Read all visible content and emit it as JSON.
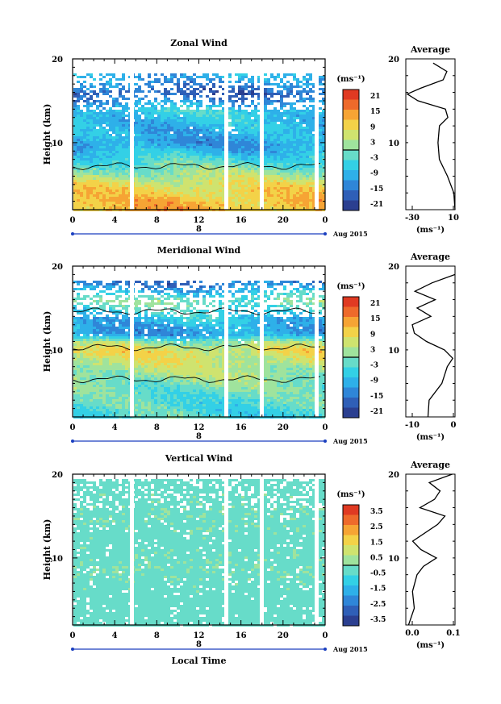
{
  "colors": {
    "colorbar": [
      "#2b3f90",
      "#2f5fb7",
      "#2f86d8",
      "#2eb0e9",
      "#33d0e6",
      "#67dcc9",
      "#9fe39d",
      "#cfe36f",
      "#f3d248",
      "#f6a434",
      "#ee6a2b",
      "#e03a22"
    ],
    "contour": "#000000",
    "gap": "#ffffff"
  },
  "x_axis": {
    "ticks": [
      "0",
      "4",
      "8",
      "12",
      "16",
      "20",
      "0"
    ],
    "date_label": "8",
    "month_label": "Aug 2015",
    "title": "Local Time"
  },
  "panels": [
    {
      "id": "zonal",
      "title": "Zonal Wind",
      "ylabel": "Height (km)",
      "yticks": [
        "20",
        "10"
      ],
      "unit": "(ms⁻¹)",
      "colorbar_ticks": [
        "21",
        "15",
        "9",
        "3",
        "-3",
        "-9",
        "-15",
        "-21"
      ],
      "avg_title": "Average",
      "avg_xticks": [
        "-30",
        "10"
      ],
      "avg_unit": "(ms⁻¹)",
      "avg_yticks": [
        "20",
        "10"
      ]
    },
    {
      "id": "meridional",
      "title": "Meridional Wind",
      "ylabel": "Height (km)",
      "yticks": [
        "20",
        "10"
      ],
      "unit": "(ms⁻¹)",
      "colorbar_ticks": [
        "21",
        "15",
        "9",
        "3",
        "-3",
        "-9",
        "-15",
        "-21"
      ],
      "avg_title": "Average",
      "avg_xticks": [
        "-10",
        "0"
      ],
      "avg_unit": "(ms⁻¹)",
      "avg_yticks": [
        "20",
        "10"
      ]
    },
    {
      "id": "vertical",
      "title": "Vertical Wind",
      "ylabel": "Height (km)",
      "yticks": [
        "20",
        "10"
      ],
      "unit": "(ms⁻¹)",
      "colorbar_ticks": [
        "3.5",
        "2.5",
        "1.5",
        "0.5",
        "-0.5",
        "-1.5",
        "-2.5",
        "-3.5"
      ],
      "avg_title": "Average",
      "avg_xticks": [
        "0.0",
        "0.1"
      ],
      "avg_unit": "(ms⁻¹)",
      "avg_yticks": [
        "20",
        "10"
      ]
    }
  ],
  "chart_data": [
    {
      "type": "heatmap",
      "title": "Zonal Wind",
      "xlabel": "Local Time",
      "ylabel": "Height (km)",
      "xlim": [
        0,
        24
      ],
      "ylim": [
        2,
        20
      ],
      "clim": [
        -24,
        24
      ],
      "heights_km": [
        3,
        5,
        7,
        9,
        10,
        11,
        12,
        14,
        16,
        18
      ],
      "values_ms": [
        12,
        8,
        0,
        -8,
        -12,
        -10,
        -9,
        -6,
        -18,
        -10
      ],
      "data_gaps_hours": [
        5.5,
        14.5,
        17.7,
        22.2
      ]
    },
    {
      "type": "line",
      "title": "Average",
      "xlabel": "(ms⁻¹)",
      "xlim": [
        -35,
        10
      ],
      "ylim": [
        2,
        20
      ],
      "y": [
        2,
        4,
        6,
        8,
        10,
        12,
        13,
        14,
        15,
        15.8,
        16.5,
        17.5,
        18.5,
        19.5
      ],
      "x": [
        10,
        8,
        3,
        -3,
        -7,
        -3,
        2,
        0,
        -25,
        -33,
        -20,
        0,
        3,
        -10
      ]
    },
    {
      "type": "heatmap",
      "title": "Meridional Wind",
      "xlabel": "Local Time",
      "ylabel": "Height (km)",
      "xlim": [
        0,
        24
      ],
      "ylim": [
        2,
        20
      ],
      "clim": [
        -24,
        24
      ],
      "heights_km": [
        3,
        5,
        7,
        9,
        10,
        11,
        12,
        14,
        16,
        18
      ],
      "values_ms": [
        -4,
        -2,
        2,
        6,
        8,
        2,
        -12,
        -8,
        0,
        -15
      ],
      "data_gaps_hours": [
        5.5,
        14.5,
        17.7,
        22.2
      ]
    },
    {
      "type": "line",
      "title": "Average",
      "xlabel": "(ms⁻¹)",
      "xlim": [
        -13,
        7
      ],
      "ylim": [
        2,
        20
      ],
      "y": [
        2,
        4,
        6,
        8,
        9,
        10,
        11,
        12,
        13,
        14,
        15,
        16,
        17,
        18,
        19
      ],
      "x": [
        -4,
        -3,
        2,
        4,
        6,
        3,
        -5,
        -9,
        -10,
        -3,
        -8,
        -1,
        -9,
        -2,
        7
      ]
    },
    {
      "type": "heatmap",
      "title": "Vertical Wind",
      "xlabel": "Local Time",
      "ylabel": "Height (km)",
      "xlim": [
        0,
        24
      ],
      "ylim": [
        2,
        20
      ],
      "clim": [
        -4,
        4
      ],
      "heights_km": [
        3,
        6,
        9,
        12,
        15,
        18
      ],
      "values_ms": [
        -0.3,
        -0.3,
        -0.2,
        -0.3,
        -0.2,
        -0.3
      ],
      "data_gaps_hours": [
        5.5,
        14.5,
        17.7,
        22.2
      ]
    },
    {
      "type": "line",
      "title": "Average",
      "xlabel": "(ms⁻¹)",
      "xlim": [
        -0.08,
        0.1
      ],
      "ylim": [
        2,
        20
      ],
      "y": [
        2,
        4,
        6,
        8,
        9,
        10,
        11,
        12,
        14,
        15,
        16,
        17,
        18,
        19,
        20
      ],
      "x": [
        -0.07,
        -0.05,
        -0.06,
        -0.04,
        -0.02,
        0.03,
        -0.02,
        -0.05,
        0.04,
        0.06,
        -0.03,
        0.02,
        0.05,
        0.0,
        0.09
      ]
    }
  ]
}
